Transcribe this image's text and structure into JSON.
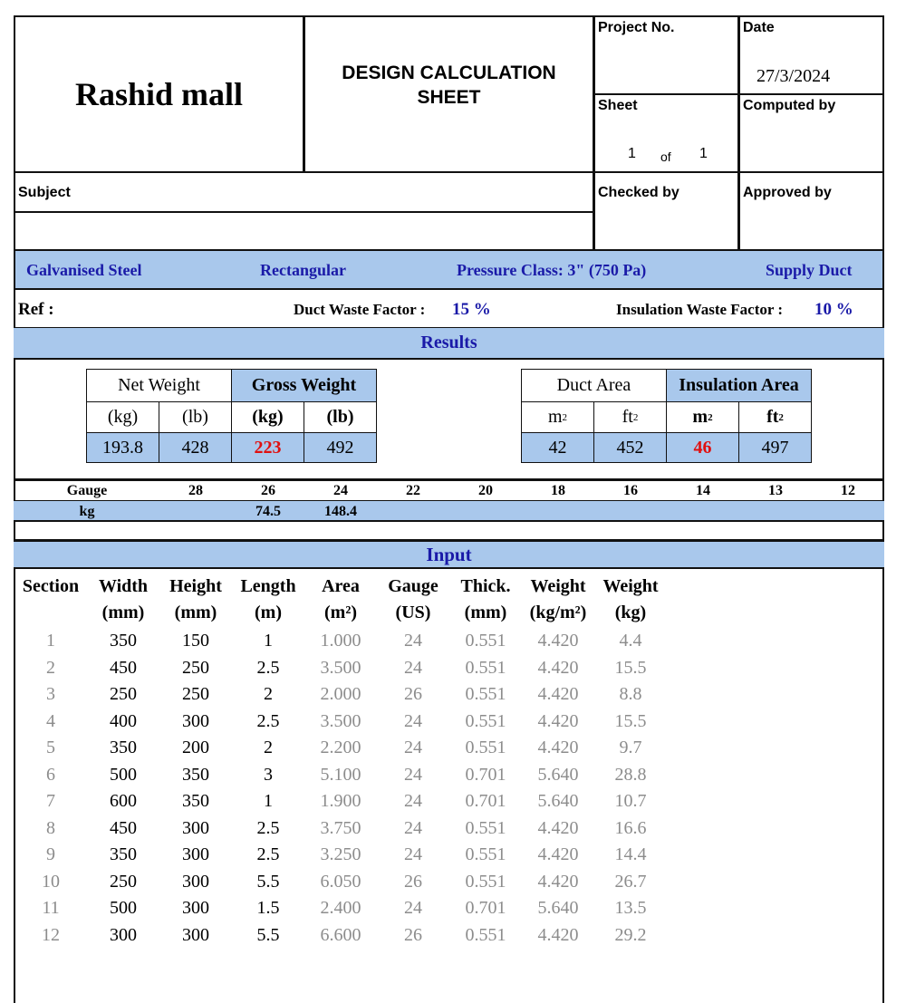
{
  "header": {
    "project_name": "Rashid mall",
    "sheet_title_line1": "DESIGN CALCULATION",
    "sheet_title_line2": "SHEET",
    "project_no_label": "Project No.",
    "project_no": "",
    "date_label": "Date",
    "date": "27/3/2024",
    "sheet_label": "Sheet",
    "sheet_no": "1",
    "sheet_of": "of",
    "sheet_total": "1",
    "computed_by_label": "Computed by",
    "subject_label": "Subject",
    "checked_by_label": "Checked by",
    "approved_by_label": "Approved by"
  },
  "spec": {
    "material": "Galvanised Steel",
    "shape": "Rectangular",
    "pressure_class": "Pressure Class: 3\" (750 Pa)",
    "system": "Supply Duct"
  },
  "ref": {
    "label": "Ref :",
    "duct_waste_label": "Duct Waste Factor :",
    "duct_waste": "15 %",
    "insulation_waste_label": "Insulation Waste Factor :",
    "insulation_waste": "10 %"
  },
  "results": {
    "title": "Results",
    "weight": {
      "net_label": "Net Weight",
      "gross_label": "Gross Weight",
      "units": [
        "(kg)",
        "(lb)",
        "(kg)",
        "(lb)"
      ],
      "values": [
        "193.8",
        "428",
        "223",
        "492"
      ]
    },
    "area": {
      "duct_label": "Duct Area",
      "insulation_label": "Insulation Area",
      "units": [
        "m",
        "ft",
        "m",
        "ft"
      ],
      "values": [
        "42",
        "452",
        "46",
        "497"
      ]
    }
  },
  "gauge_table": {
    "gauge_label": "Gauge",
    "kg_label": "kg",
    "gauges": [
      "28",
      "26",
      "24",
      "22",
      "20",
      "18",
      "16",
      "14",
      "13",
      "12"
    ],
    "kg": [
      "",
      "74.5",
      "148.4",
      "",
      "",
      "",
      "",
      "",
      "",
      ""
    ]
  },
  "input": {
    "title": "Input",
    "headers": [
      [
        "Section",
        ""
      ],
      [
        "Width",
        "(mm)"
      ],
      [
        "Height",
        "(mm)"
      ],
      [
        "Length",
        "(m)"
      ],
      [
        "Area",
        "(m²)"
      ],
      [
        "Gauge",
        "(US)"
      ],
      [
        "Thick.",
        "(mm)"
      ],
      [
        "Weight",
        "(kg/m²)"
      ],
      [
        "Weight",
        "(kg)"
      ]
    ],
    "rows": [
      [
        "1",
        "350",
        "150",
        "1",
        "1.000",
        "24",
        "0.551",
        "4.420",
        "4.4"
      ],
      [
        "2",
        "450",
        "250",
        "2.5",
        "3.500",
        "24",
        "0.551",
        "4.420",
        "15.5"
      ],
      [
        "3",
        "250",
        "250",
        "2",
        "2.000",
        "26",
        "0.551",
        "4.420",
        "8.8"
      ],
      [
        "4",
        "400",
        "300",
        "2.5",
        "3.500",
        "24",
        "0.551",
        "4.420",
        "15.5"
      ],
      [
        "5",
        "350",
        "200",
        "2",
        "2.200",
        "24",
        "0.551",
        "4.420",
        "9.7"
      ],
      [
        "6",
        "500",
        "350",
        "3",
        "5.100",
        "24",
        "0.701",
        "5.640",
        "28.8"
      ],
      [
        "7",
        "600",
        "350",
        "1",
        "1.900",
        "24",
        "0.701",
        "5.640",
        "10.7"
      ],
      [
        "8",
        "450",
        "300",
        "2.5",
        "3.750",
        "24",
        "0.551",
        "4.420",
        "16.6"
      ],
      [
        "9",
        "350",
        "300",
        "2.5",
        "3.250",
        "24",
        "0.551",
        "4.420",
        "14.4"
      ],
      [
        "10",
        "250",
        "300",
        "5.5",
        "6.050",
        "26",
        "0.551",
        "4.420",
        "26.7"
      ],
      [
        "11",
        "500",
        "300",
        "1.5",
        "2.400",
        "24",
        "0.701",
        "5.640",
        "13.5"
      ],
      [
        "12",
        "300",
        "300",
        "5.5",
        "6.600",
        "26",
        "0.551",
        "4.420",
        "29.2"
      ]
    ]
  },
  "colors": {
    "band": "#a9c8ec",
    "navy": "#1a1aa8",
    "red": "#e01010",
    "gray": "#8c8c8c"
  }
}
